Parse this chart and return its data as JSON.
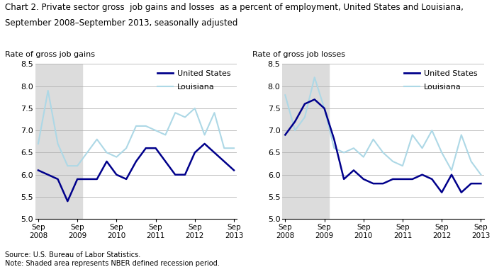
{
  "title_line1": "Chart 2. Private sector gross  job gains and losses  as a percent of employment, United States and Louisiana,",
  "title_line2": "September 2008–September 2013, seasonally adjusted",
  "left_ylabel": "Rate of gross job gains",
  "right_ylabel": "Rate of gross job losses",
  "source_text": "Source: U.S. Bureau of Labor Statistics.\nNote: Shaded area represents NBER defined recession period.",
  "ylim": [
    5.0,
    8.5
  ],
  "yticks": [
    5.0,
    5.5,
    6.0,
    6.5,
    7.0,
    7.5,
    8.0,
    8.5
  ],
  "xtick_labels": [
    "Sep\n2008",
    "Sep\n2009",
    "Sep\n2010",
    "Sep\n2011",
    "Sep\n2012",
    "Sep\n2013"
  ],
  "xtick_positions": [
    0,
    4,
    8,
    12,
    16,
    20
  ],
  "us_color": "#00008B",
  "la_color": "#ADD8E6",
  "shade_color": "#DCDCDC",
  "xlim_left": -0.3,
  "xlim_right": 20.3,
  "recession_start": -0.3,
  "left_recession_end": 4.5,
  "right_recession_end": 4.5,
  "left": {
    "us_gains": [
      6.1,
      6.0,
      5.9,
      5.4,
      5.9,
      5.9,
      5.9,
      6.3,
      6.0,
      5.9,
      6.3,
      6.6,
      6.6,
      6.3,
      6.0,
      6.0,
      6.5,
      6.7,
      6.5,
      6.3,
      6.1
    ],
    "la_gains": [
      6.7,
      7.9,
      6.7,
      6.2,
      6.2,
      6.5,
      6.8,
      6.5,
      6.4,
      6.6,
      7.1,
      7.1,
      7.0,
      6.9,
      7.4,
      7.3,
      7.5,
      6.9,
      7.4,
      6.6,
      6.6
    ]
  },
  "right": {
    "us_losses": [
      6.9,
      7.2,
      7.6,
      7.7,
      7.5,
      6.8,
      5.9,
      6.1,
      5.9,
      5.8,
      5.8,
      5.9,
      5.9,
      5.9,
      6.0,
      5.9,
      5.6,
      6.0,
      5.6,
      5.8,
      5.8
    ],
    "la_losses": [
      7.8,
      7.0,
      7.3,
      8.2,
      7.5,
      6.6,
      6.5,
      6.6,
      6.4,
      6.8,
      6.5,
      6.3,
      6.2,
      6.9,
      6.6,
      7.0,
      6.5,
      6.1,
      6.9,
      6.3,
      6.0
    ]
  }
}
